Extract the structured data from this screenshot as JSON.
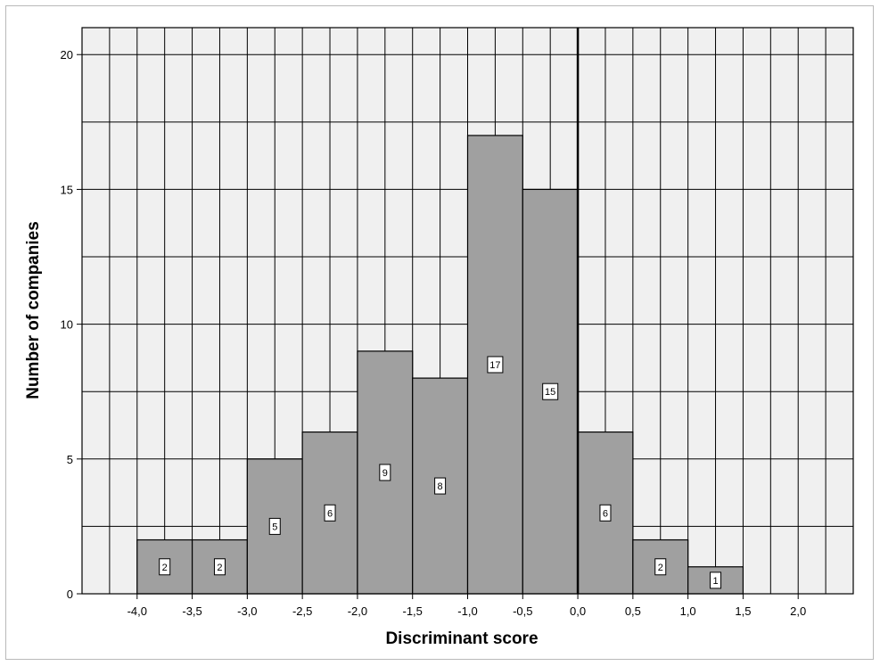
{
  "chart_data": {
    "type": "bar",
    "xlabel": "Discriminant score",
    "ylabel": "Number of companies",
    "bin_width": 0.5,
    "bins": [
      {
        "start": -4.0,
        "end": -3.5,
        "value": 2,
        "label": "2"
      },
      {
        "start": -3.5,
        "end": -3.0,
        "value": 2,
        "label": "2"
      },
      {
        "start": -3.0,
        "end": -2.5,
        "value": 5,
        "label": "5"
      },
      {
        "start": -2.5,
        "end": -2.0,
        "value": 6,
        "label": "6"
      },
      {
        "start": -2.0,
        "end": -1.5,
        "value": 9,
        "label": "9"
      },
      {
        "start": -1.5,
        "end": -1.0,
        "value": 8,
        "label": "8"
      },
      {
        "start": -1.0,
        "end": -0.5,
        "value": 17,
        "label": "17"
      },
      {
        "start": -0.5,
        "end": 0.0,
        "value": 15,
        "label": "15"
      },
      {
        "start": 0.0,
        "end": 0.5,
        "value": 6,
        "label": "6"
      },
      {
        "start": 0.5,
        "end": 1.0,
        "value": 2,
        "label": "2"
      },
      {
        "start": 1.0,
        "end": 1.5,
        "value": 1,
        "label": "1"
      }
    ],
    "xlim": [
      -4.5,
      2.5
    ],
    "ylim": [
      0,
      21
    ],
    "x_ticks": [
      -4.0,
      -3.5,
      -3.0,
      -2.5,
      -2.0,
      -1.5,
      -1.0,
      -0.5,
      0.0,
      0.5,
      1.0,
      1.5,
      2.0
    ],
    "x_tick_labels": [
      "-4,0",
      "-3,5",
      "-3,0",
      "-2,5",
      "-2,0",
      "-1,5",
      "-1,0",
      "-0,5",
      "0,0",
      "0,5",
      "1,0",
      "1,5",
      "2,0"
    ],
    "y_ticks": [
      0,
      5,
      10,
      15,
      20
    ],
    "y_tick_labels": [
      "0",
      "5",
      "10",
      "15",
      "20"
    ],
    "reference_line_x": 0.0,
    "grid": true,
    "colors": {
      "bar": "#a0a0a0",
      "plot_background": "#f0f0f0",
      "grid": "#000000"
    }
  }
}
